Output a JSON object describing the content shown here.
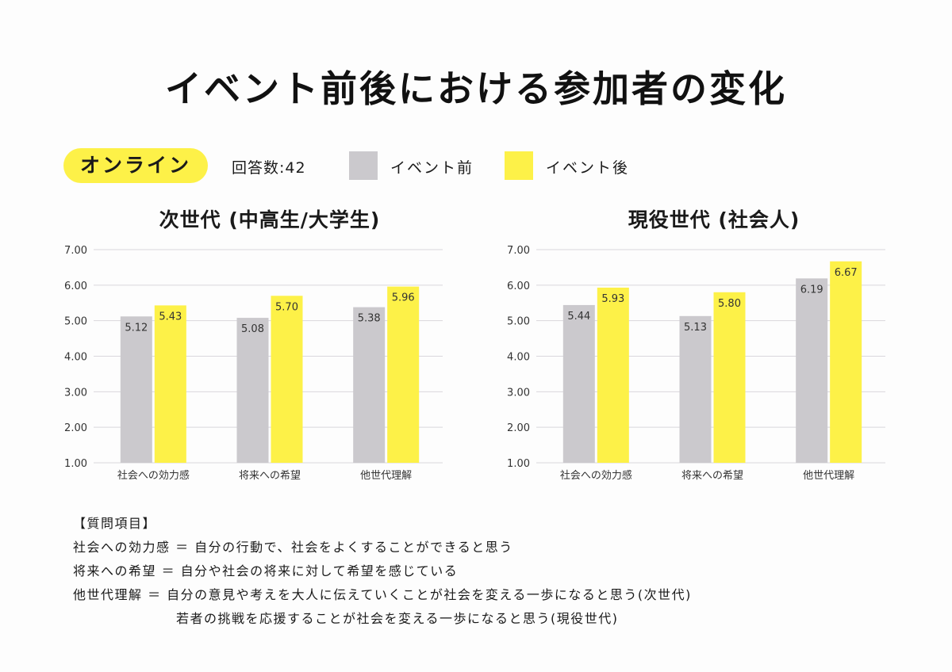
{
  "title": "イベント前後における参加者の変化",
  "segment_label": "オンライン",
  "response_count": "回答数:42",
  "legend": {
    "before": "イベント前",
    "after": "イベント後",
    "before_color": "#cbc9cd",
    "after_color": "#fdf148"
  },
  "chart_data": [
    {
      "type": "bar",
      "title": "次世代 (中高生/大学生)",
      "categories": [
        "社会への効力感",
        "将来への希望",
        "他世代理解"
      ],
      "series": [
        {
          "name": "イベント前",
          "values": [
            5.12,
            5.08,
            5.38
          ]
        },
        {
          "name": "イベント後",
          "values": [
            5.43,
            5.7,
            5.96
          ]
        }
      ],
      "ylim": [
        1.0,
        7.0
      ],
      "yticks": [
        "1.00",
        "2.00",
        "3.00",
        "4.00",
        "5.00",
        "6.00",
        "7.00"
      ],
      "value_labels": [
        [
          "5.12",
          "5.08",
          "5.38"
        ],
        [
          "5.43",
          "5.70",
          "5.96"
        ]
      ],
      "grid": true
    },
    {
      "type": "bar",
      "title": "現役世代 (社会人)",
      "categories": [
        "社会への効力感",
        "将来への希望",
        "他世代理解"
      ],
      "series": [
        {
          "name": "イベント前",
          "values": [
            5.44,
            5.13,
            6.19
          ]
        },
        {
          "name": "イベント後",
          "values": [
            5.93,
            5.8,
            6.67
          ]
        }
      ],
      "ylim": [
        1.0,
        7.0
      ],
      "yticks": [
        "1.00",
        "2.00",
        "3.00",
        "4.00",
        "5.00",
        "6.00",
        "7.00"
      ],
      "value_labels": [
        [
          "5.44",
          "5.13",
          "6.19"
        ],
        [
          "5.93",
          "5.80",
          "6.67"
        ]
      ],
      "grid": true
    }
  ],
  "notes": {
    "heading": "【質問項目】",
    "line1": "社会への効力感 ＝ 自分の行動で、社会をよくすることができると思う",
    "line2": "将来への希望 ＝ 自分や社会の将来に対して希望を感じている",
    "line3": "他世代理解 ＝ 自分の意見や考えを大人に伝えていくことが社会を変える一歩になると思う(次世代)",
    "line4": "若者の挑戦を応援することが社会を変える一歩になると思う(現役世代)"
  }
}
